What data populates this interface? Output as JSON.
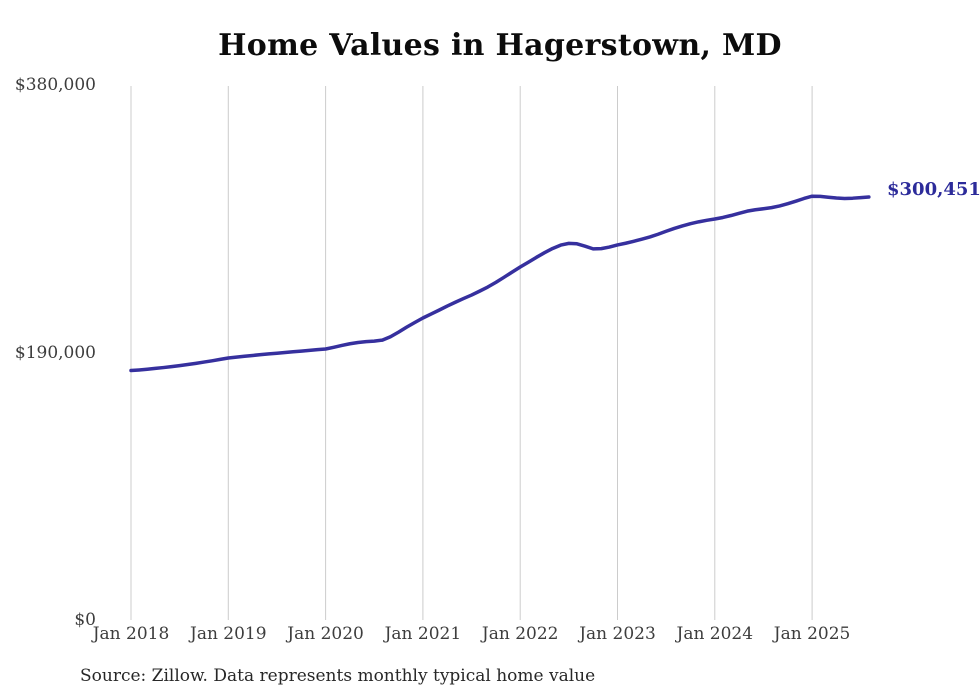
{
  "chart": {
    "title": "Home Values in Hagerstown, MD",
    "end_label": "$300,451",
    "source_note": "Source: Zillow. Data represents monthly typical home value",
    "colors": {
      "line": "#36309e",
      "end_label": "#2c2b9a",
      "grid": "#cccccc",
      "title": "#0c0c0c",
      "tick_text": "#3d3d3d",
      "source_text": "#272727",
      "background": "#ffffff"
    }
  },
  "chart_data": {
    "type": "line",
    "title": "Home Values in Hagerstown, MD",
    "xlabel": "",
    "ylabel": "",
    "ylim": [
      0,
      380000
    ],
    "grid": "vertical-only",
    "legend": "none",
    "frequency": "monthly",
    "x": [
      "2018-01",
      "2018-02",
      "2018-03",
      "2018-04",
      "2018-05",
      "2018-06",
      "2018-07",
      "2018-08",
      "2018-09",
      "2018-10",
      "2018-11",
      "2018-12",
      "2019-01",
      "2019-02",
      "2019-03",
      "2019-04",
      "2019-05",
      "2019-06",
      "2019-07",
      "2019-08",
      "2019-09",
      "2019-10",
      "2019-11",
      "2019-12",
      "2020-01",
      "2020-02",
      "2020-03",
      "2020-04",
      "2020-05",
      "2020-06",
      "2020-07",
      "2020-08",
      "2020-09",
      "2020-10",
      "2020-11",
      "2020-12",
      "2021-01",
      "2021-02",
      "2021-03",
      "2021-04",
      "2021-05",
      "2021-06",
      "2021-07",
      "2021-08",
      "2021-09",
      "2021-10",
      "2021-11",
      "2021-12",
      "2022-01",
      "2022-02",
      "2022-03",
      "2022-04",
      "2022-05",
      "2022-06",
      "2022-07",
      "2022-08",
      "2022-09",
      "2022-10",
      "2022-11",
      "2022-12",
      "2023-01",
      "2023-02",
      "2023-03",
      "2023-04",
      "2023-05",
      "2023-06",
      "2023-07",
      "2023-08",
      "2023-09",
      "2023-10",
      "2023-11",
      "2023-12",
      "2024-01",
      "2024-02",
      "2024-03",
      "2024-04",
      "2024-05",
      "2024-06",
      "2024-07",
      "2024-08",
      "2024-09",
      "2024-10",
      "2024-11",
      "2024-12",
      "2025-01",
      "2025-02",
      "2025-03",
      "2025-04",
      "2025-05",
      "2025-06",
      "2025-07",
      "2025-08"
    ],
    "series": [
      {
        "name": "Typical home value",
        "color": "#36309e",
        "values": [
          177200,
          177600,
          178100,
          178700,
          179300,
          180000,
          180700,
          181500,
          182300,
          183200,
          184100,
          185100,
          186100,
          186700,
          187300,
          187900,
          188500,
          189000,
          189500,
          190000,
          190500,
          191000,
          191500,
          192000,
          192500,
          193700,
          195000,
          196200,
          197100,
          197700,
          198100,
          198800,
          201200,
          204500,
          208000,
          211300,
          214500,
          217300,
          220100,
          223000,
          225700,
          228300,
          230800,
          233600,
          236500,
          239800,
          243400,
          247100,
          250700,
          254100,
          257600,
          260900,
          263900,
          266300,
          267500,
          267200,
          265500,
          263600,
          263800,
          264900,
          266400,
          267600,
          269000,
          270500,
          272100,
          274000,
          276100,
          278100,
          279900,
          281500,
          282800,
          283900,
          284800,
          285900,
          287300,
          288900,
          290400,
          291400,
          292100,
          292900,
          294100,
          295700,
          297500,
          299400,
          301000,
          300900,
          300300,
          299700,
          299400,
          299600,
          300000,
          300451
        ]
      }
    ],
    "y_ticks": [
      {
        "label": "$380,000",
        "value": 380000
      },
      {
        "label": "$190,000",
        "value": 190000
      },
      {
        "label": "$0",
        "value": 0
      }
    ],
    "x_ticks": [
      {
        "label": "Jan 2018",
        "month_index": 0
      },
      {
        "label": "Jan 2019",
        "month_index": 12
      },
      {
        "label": "Jan 2020",
        "month_index": 24
      },
      {
        "label": "Jan 2021",
        "month_index": 36
      },
      {
        "label": "Jan 2022",
        "month_index": 48
      },
      {
        "label": "Jan 2023",
        "month_index": 60
      },
      {
        "label": "Jan 2024",
        "month_index": 72
      },
      {
        "label": "Jan 2025",
        "month_index": 84
      }
    ],
    "annotation": {
      "text": "$300,451",
      "attached_to": "last-point"
    }
  }
}
